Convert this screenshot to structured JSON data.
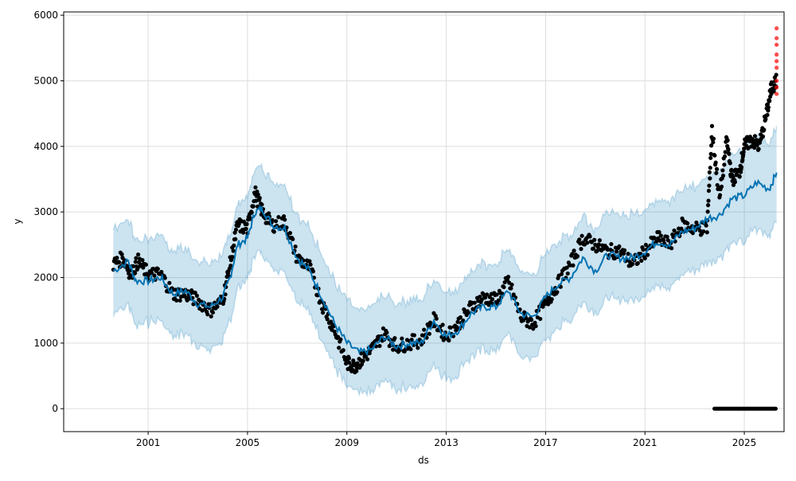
{
  "chart_data": {
    "type": "scatter",
    "title": "",
    "xlabel": "ds",
    "ylabel": "y",
    "xlim": [
      1997.6,
      2026.6
    ],
    "ylim": [
      -350,
      6050
    ],
    "x_ticks": [
      "2001",
      "2005",
      "2009",
      "2013",
      "2017",
      "2021",
      "2025"
    ],
    "x_tick_values": [
      2001,
      2005,
      2009,
      2013,
      2017,
      2021,
      2025
    ],
    "y_ticks": [
      "0",
      "1000",
      "2000",
      "3000",
      "4000",
      "5000",
      "6000"
    ],
    "y_tick_values": [
      0,
      1000,
      2000,
      3000,
      4000,
      5000,
      6000
    ],
    "grid": true,
    "colors": {
      "forecast": "#0072B2",
      "band": "#0072B2",
      "observed": "#000000",
      "outlier": "#ff0000"
    },
    "forecast": {
      "x": [
        1999.6,
        2000.2,
        2000.5,
        2001,
        2001.5,
        2002,
        2002.5,
        2003,
        2003.5,
        2004,
        2004.3,
        2004.6,
        2005,
        2005.3,
        2005.6,
        2006,
        2006.5,
        2007,
        2007.5,
        2008,
        2008.5,
        2009,
        2009.5,
        2010,
        2010.5,
        2011,
        2011.5,
        2012,
        2012.5,
        2013,
        2013.5,
        2014,
        2014.5,
        2015,
        2015.5,
        2016,
        2016.5,
        2017,
        2017.5,
        2018,
        2018.5,
        2019,
        2019.5,
        2020,
        2020.5,
        2021,
        2021.5,
        2022,
        2022.5,
        2023,
        2023.5,
        2024,
        2024.5,
        2025,
        2025.5,
        2026,
        2026.3
      ],
      "yhat": [
        2100,
        2250,
        1950,
        1950,
        2000,
        1750,
        1800,
        1600,
        1550,
        1700,
        2000,
        2500,
        2600,
        3000,
        3050,
        2800,
        2750,
        2300,
        2100,
        1700,
        1300,
        1000,
        850,
        900,
        1100,
        950,
        1000,
        1000,
        1350,
        1100,
        1200,
        1450,
        1550,
        1550,
        1800,
        1450,
        1400,
        1700,
        1900,
        2000,
        2300,
        2100,
        2350,
        2300,
        2300,
        2400,
        2550,
        2500,
        2700,
        2750,
        2900,
        2950,
        3200,
        3250,
        3450,
        3350,
        3600
      ],
      "band_halfwidth": [
        650,
        650,
        650,
        650,
        650,
        650,
        650,
        650,
        650,
        650,
        650,
        650,
        650,
        650,
        650,
        650,
        650,
        650,
        650,
        650,
        650,
        650,
        650,
        650,
        650,
        650,
        650,
        650,
        650,
        650,
        650,
        650,
        650,
        650,
        650,
        650,
        650,
        650,
        650,
        650,
        650,
        650,
        650,
        650,
        650,
        650,
        650,
        650,
        650,
        650,
        660,
        670,
        680,
        690,
        700,
        710,
        720
      ]
    },
    "observed": {
      "x": [
        1999.6,
        2000,
        2000.3,
        2000.6,
        2001,
        2001.5,
        2002,
        2002.5,
        2003,
        2003.5,
        2004,
        2004.3,
        2004.6,
        2005,
        2005.3,
        2005.6,
        2006,
        2006.5,
        2007,
        2007.5,
        2008,
        2008.5,
        2009,
        2009.3,
        2009.6,
        2010,
        2010.5,
        2011,
        2011.5,
        2012,
        2012.5,
        2013,
        2013.5,
        2014,
        2014.5,
        2015,
        2015.5,
        2016,
        2016.5,
        2017,
        2017.5,
        2018,
        2018.5,
        2019,
        2019.5,
        2020,
        2020.5,
        2021,
        2021.5,
        2022,
        2022.5,
        2023,
        2023.5,
        2023.7,
        2024,
        2024.3,
        2024.5,
        2024.8,
        2025,
        2025.3,
        2025.6,
        2025.9,
        2026.1,
        2026.3
      ],
      "y": [
        2200,
        2300,
        2050,
        2250,
        2050,
        2050,
        1750,
        1750,
        1650,
        1500,
        1650,
        2200,
        2800,
        2750,
        3300,
        3000,
        2800,
        2850,
        2300,
        2150,
        1600,
        1200,
        700,
        650,
        750,
        900,
        1150,
        950,
        1000,
        1050,
        1350,
        1100,
        1300,
        1550,
        1700,
        1650,
        1950,
        1400,
        1300,
        1600,
        1900,
        2200,
        2600,
        2500,
        2400,
        2400,
        2200,
        2400,
        2600,
        2500,
        2800,
        2750,
        2750,
        4250,
        3200,
        4100,
        3500,
        3600,
        4000,
        4100,
        4000,
        4500,
        4900,
        5000
      ]
    },
    "observed_zero": {
      "x_start": 2023.8,
      "x_end": 2026.3,
      "y": 0
    },
    "outliers": {
      "x": [
        2026.3,
        2026.3,
        2026.3,
        2026.3,
        2026.3,
        2026.3,
        2026.3,
        2026.3,
        2026.3
      ],
      "y": [
        4800,
        4900,
        5000,
        5200,
        5300,
        5400,
        5550,
        5650,
        5800
      ]
    }
  }
}
